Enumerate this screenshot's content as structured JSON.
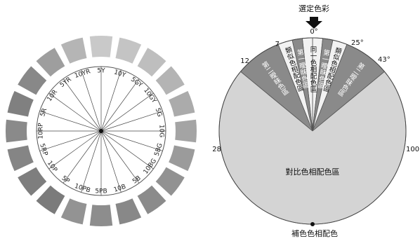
{
  "hue_wheel": {
    "hues": [
      {
        "label": "5Y",
        "color": "#c9c9c9"
      },
      {
        "label": "10Y",
        "color": "#c4c4c4"
      },
      {
        "label": "5GY",
        "color": "#bebebe"
      },
      {
        "label": "10GY",
        "color": "#b4b4b4"
      },
      {
        "label": "5G",
        "color": "#ababab"
      },
      {
        "label": "10G",
        "color": "#a4a4a4"
      },
      {
        "label": "5BG",
        "color": "#9b9b9b"
      },
      {
        "label": "10BG",
        "color": "#929292"
      },
      {
        "label": "5B",
        "color": "#8b8b8b"
      },
      {
        "label": "10B",
        "color": "#888888"
      },
      {
        "label": "5PB",
        "color": "#8d8d8d"
      },
      {
        "label": "10PB",
        "color": "#939393"
      },
      {
        "label": "5P",
        "color": "#7b7b7b"
      },
      {
        "label": "10P",
        "color": "#7e7e7e"
      },
      {
        "label": "5RP",
        "color": "#858585"
      },
      {
        "label": "10RP",
        "color": "#8a8a8a"
      },
      {
        "label": "5R",
        "color": "#808080"
      },
      {
        "label": "10R",
        "color": "#888888"
      },
      {
        "label": "5YR",
        "color": "#9e9e9e"
      },
      {
        "label": "10YR",
        "color": "#b5b5b5"
      }
    ]
  },
  "harmony_wheel": {
    "selected_label": "選定色彩",
    "boundaries": [
      {
        "value": 0,
        "label": "0°"
      },
      {
        "value": 7,
        "label": "7"
      },
      {
        "value": 12,
        "label": "12"
      },
      {
        "value": 25,
        "label": "25°"
      },
      {
        "value": 28,
        "label": "28"
      },
      {
        "value": 43,
        "label": "43°"
      },
      {
        "value": 100,
        "label": "100"
      }
    ],
    "regions": {
      "same": "同一色相配色區",
      "first_left": "第一曖昧色區",
      "first_right": "第一曖昧色區",
      "similar_left": "類似色相配色區",
      "similar_right": "類似色相配色區",
      "second_left": "第二曖昧色區",
      "second_right": "第二曖昧色區",
      "contrast": "對比色相配色區"
    },
    "complement_label": "補色色相配色",
    "colors": {
      "light": "#f2f2f2",
      "mid": "#8a8a8a",
      "contrast": "#d4d4d4"
    }
  }
}
